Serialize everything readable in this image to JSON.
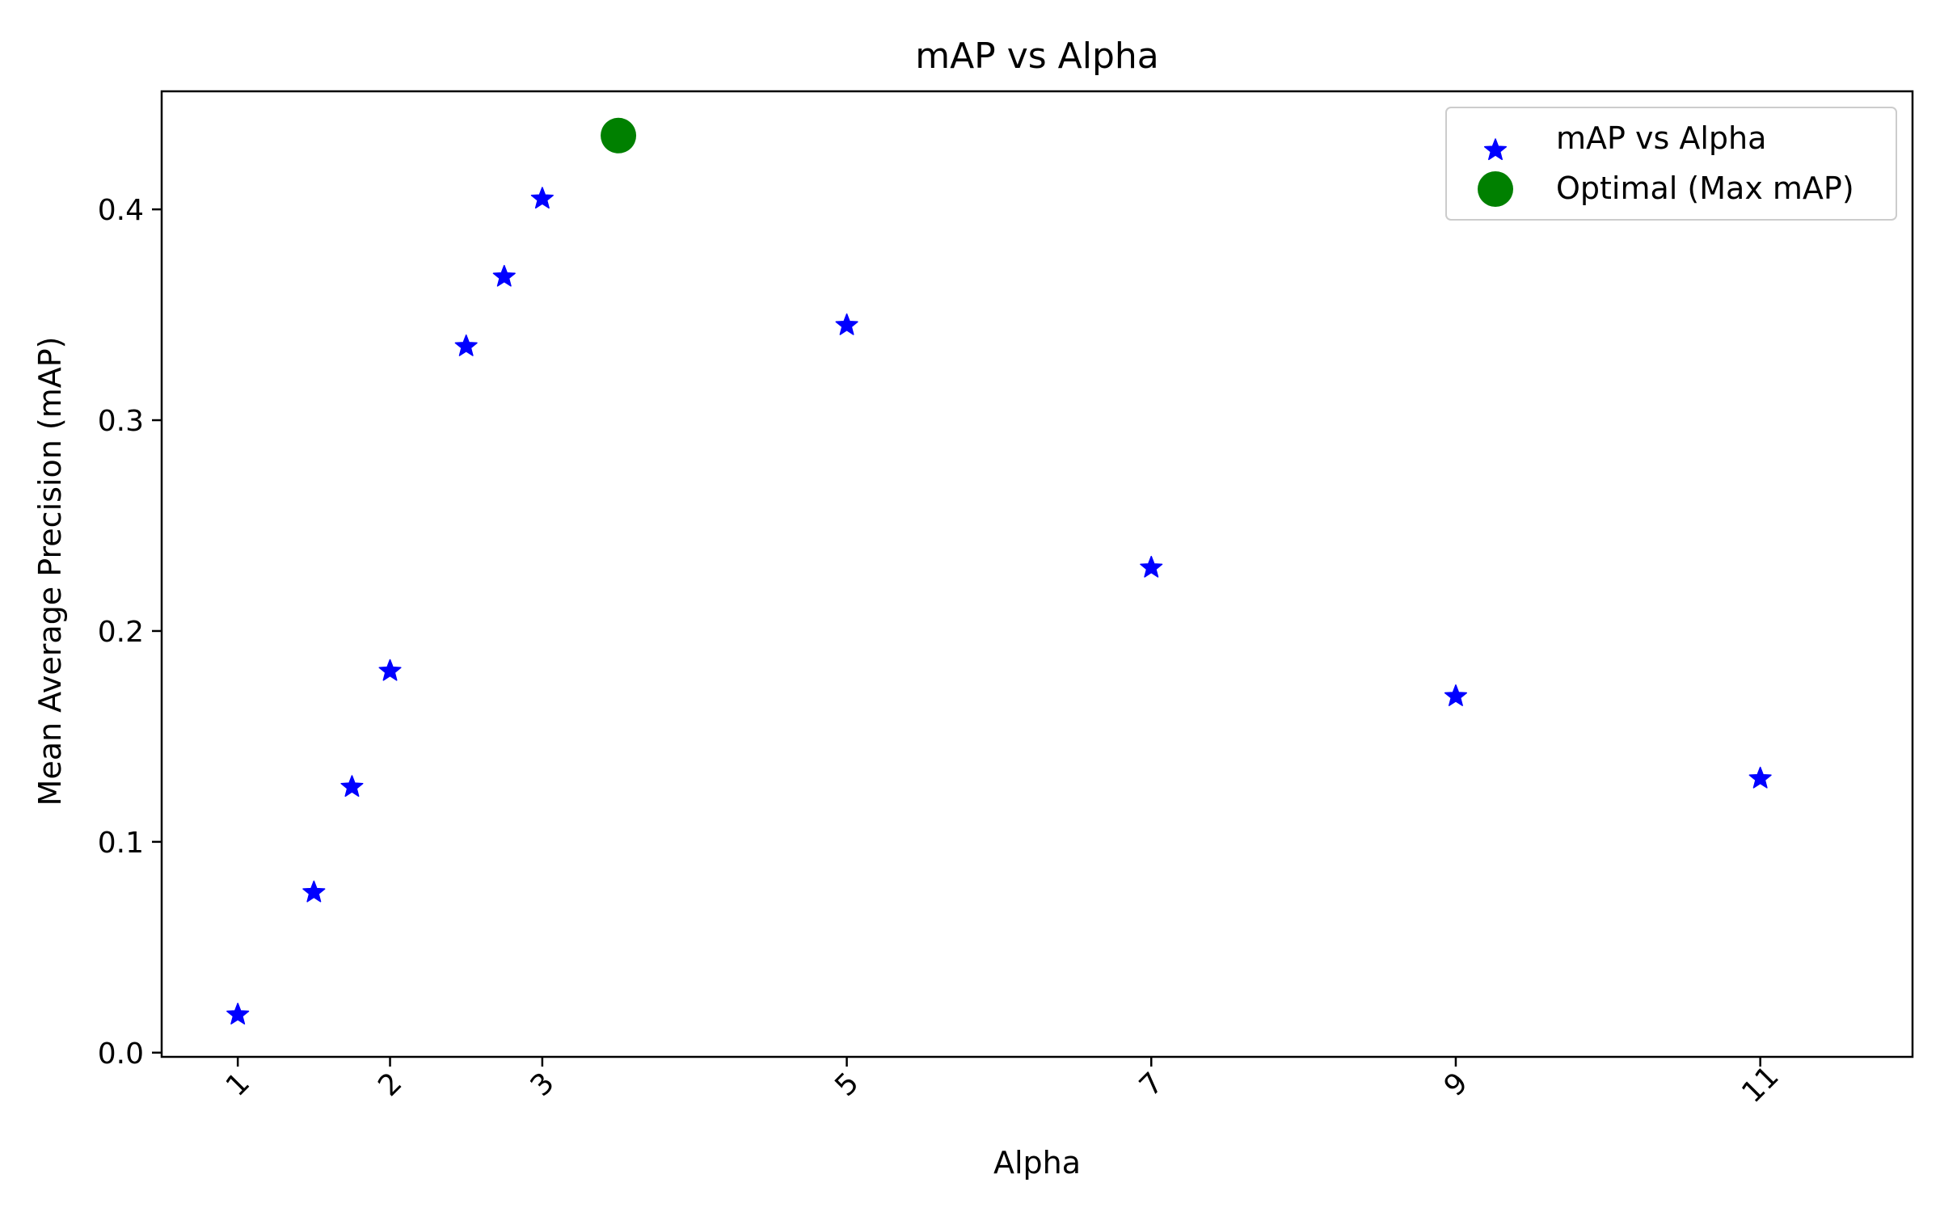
{
  "chart_data": {
    "type": "scatter",
    "title": "mAP vs Alpha",
    "xlabel": "Alpha",
    "ylabel": "Mean Average Precision (mAP)",
    "xlim": [
      0.5,
      12.0
    ],
    "ylim": [
      -0.002,
      0.456
    ],
    "x_ticks": [
      1,
      2,
      3,
      5,
      7,
      9,
      11
    ],
    "x_tick_labels": [
      "1",
      "2",
      "3",
      "5",
      "7",
      "9",
      "11"
    ],
    "y_ticks": [
      0.0,
      0.1,
      0.2,
      0.3,
      0.4
    ],
    "y_tick_labels": [
      "0.0",
      "0.1",
      "0.2",
      "0.3",
      "0.4"
    ],
    "grid": false,
    "legend_position": "top-right",
    "series": [
      {
        "name": "mAP vs Alpha",
        "marker": "star",
        "color": "#0000ff",
        "points": [
          {
            "x": 1.0,
            "y": 0.018
          },
          {
            "x": 1.5,
            "y": 0.076
          },
          {
            "x": 1.75,
            "y": 0.126
          },
          {
            "x": 2.0,
            "y": 0.181
          },
          {
            "x": 2.5,
            "y": 0.335
          },
          {
            "x": 2.75,
            "y": 0.368
          },
          {
            "x": 3.0,
            "y": 0.405
          },
          {
            "x": 5.0,
            "y": 0.345
          },
          {
            "x": 7.0,
            "y": 0.23
          },
          {
            "x": 9.0,
            "y": 0.169
          },
          {
            "x": 11.0,
            "y": 0.13
          }
        ]
      },
      {
        "name": "Optimal (Max mAP)",
        "marker": "circle",
        "color": "#008000",
        "points": [
          {
            "x": 3.5,
            "y": 0.435
          }
        ]
      }
    ]
  }
}
